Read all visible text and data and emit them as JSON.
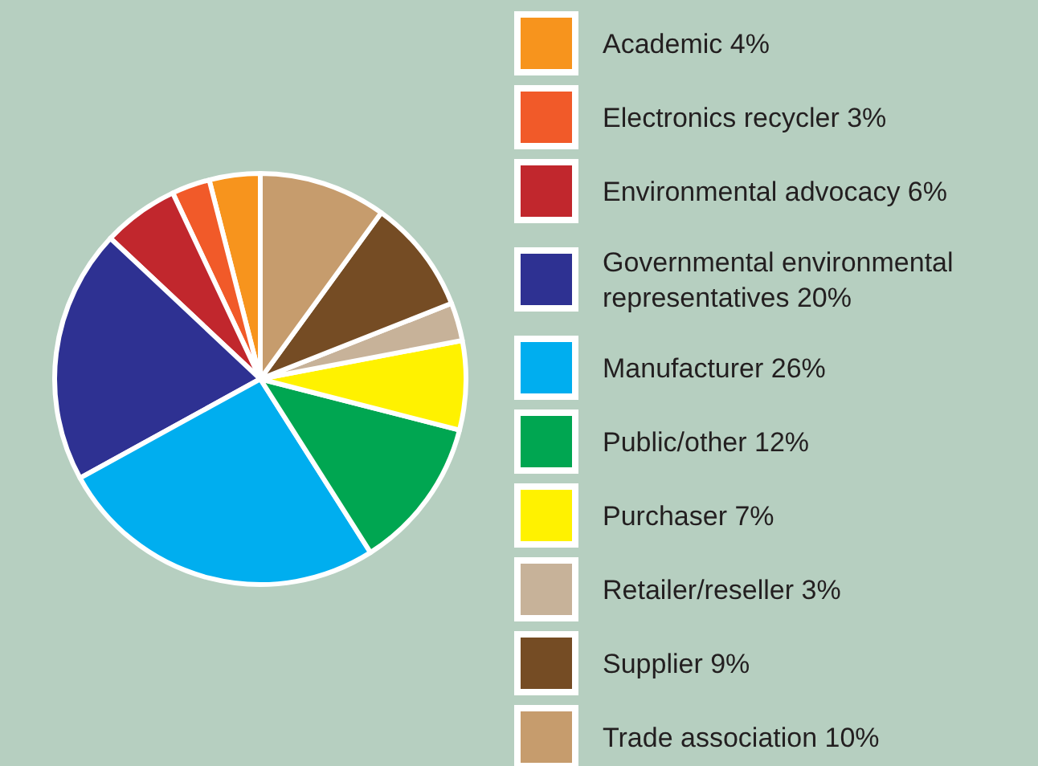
{
  "chart_data": {
    "type": "pie",
    "categories": [
      "Academic",
      "Electronics recycler",
      "Environmental advocacy",
      "Governmental environmental representatives",
      "Manufacturer",
      "Public/other",
      "Purchaser",
      "Retailer/reseller",
      "Supplier",
      "Trade association"
    ],
    "values": [
      4,
      3,
      6,
      20,
      26,
      12,
      7,
      3,
      9,
      10
    ],
    "value_labels": [
      "4%",
      "3%",
      "6%",
      "20%",
      "26%",
      "12%",
      "7%",
      "3%",
      "9%",
      "10%"
    ],
    "colors": [
      "#f7941d",
      "#f15a29",
      "#c1272d",
      "#2e3192",
      "#00aeef",
      "#00a651",
      "#fff200",
      "#c7b299",
      "#754c24",
      "#c69c6d"
    ],
    "legend": "right"
  }
}
